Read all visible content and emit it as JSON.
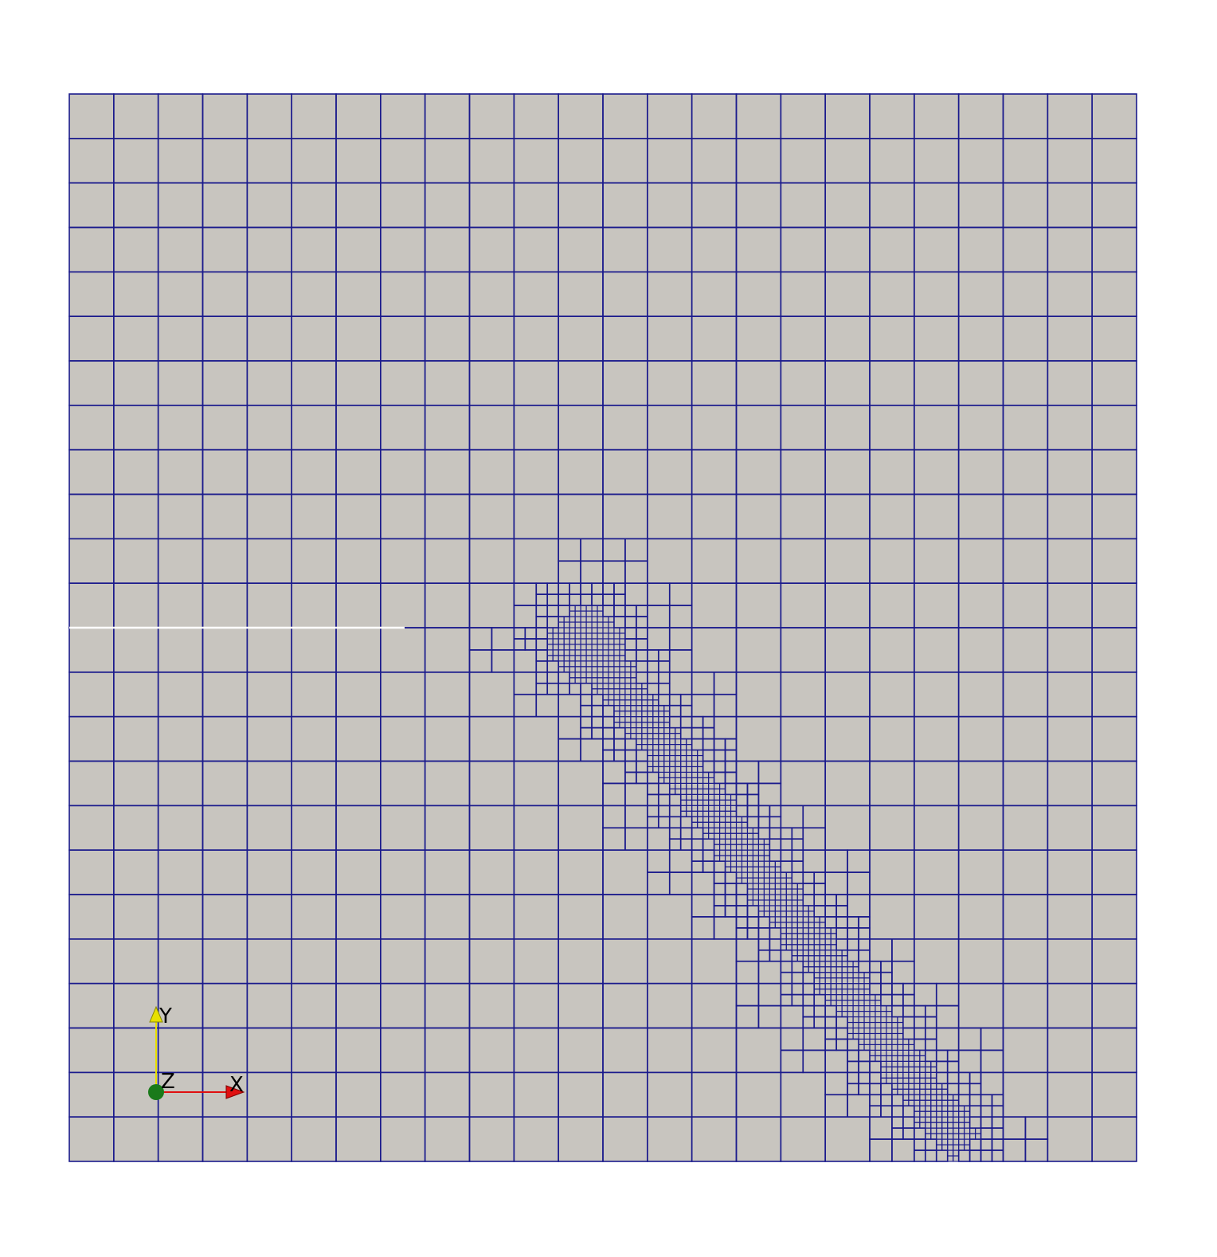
{
  "view": {
    "background_color": "#ffffff",
    "surface_color": "#c8c5bf",
    "edge_color": "#1a1a8c",
    "crack_color": "#ffffff"
  },
  "mesh": {
    "description_visible": false,
    "base_divisions": 24,
    "max_refinement_level": 3
  },
  "orientation_axes": {
    "x_label": "X",
    "y_label": "Y",
    "z_label": "Z",
    "x_color": "#e01010",
    "y_color": "#e8e000",
    "z_color": "#1a7a1a"
  }
}
